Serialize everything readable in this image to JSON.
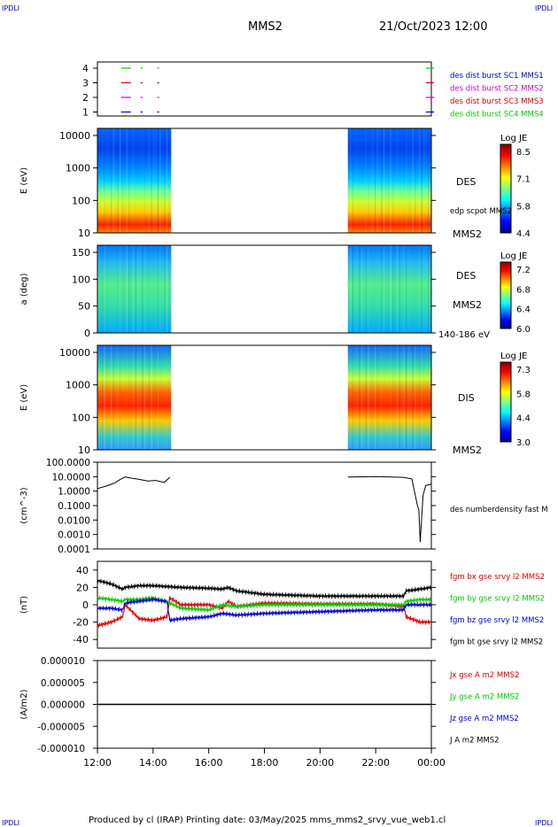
{
  "corner_marks": {
    "top_left": "IPDLI",
    "top_right": "IPDLI",
    "bottom_left": "IPDLI",
    "bottom_right": "IPDLI"
  },
  "header": {
    "mission": "MMS2",
    "datetime": "21/Oct/2023 12:00"
  },
  "footer": {
    "text": "Produced by cl (IRAP)   Printing date: 03/May/2025   mms_mms2_srvy_vue_web1.cl"
  },
  "colors": {
    "mms1": "#0000cc",
    "mms2": "#cc00cc",
    "mms3": "#dd0000",
    "mms4": "#00cc00",
    "black": "#000000"
  },
  "chart_data": [
    {
      "id": "burst",
      "type": "scatter",
      "yticks": [
        "4",
        "3",
        "2",
        "1"
      ],
      "legend": [
        {
          "text": "des dist burst SC1 MMS1",
          "color": "#0000cc"
        },
        {
          "text": "des dist burst SC2 MMS2",
          "color": "#cc00cc"
        },
        {
          "text": "des dist burst SC3 MMS3",
          "color": "#dd0000"
        },
        {
          "text": "des dist burst SC4 MMS4",
          "color": "#00cc00"
        }
      ],
      "intervals_hours": [
        [
          12.85,
          13.2
        ],
        [
          13.55,
          13.62
        ],
        [
          14.15,
          14.22
        ],
        [
          23.8,
          24.1
        ]
      ]
    },
    {
      "id": "des-energy",
      "type": "heatmap",
      "ylabel": "E (eV)",
      "yticks": [
        "10000",
        "1000",
        "100",
        "10"
      ],
      "right_labels": [
        "DES",
        "edp scpot MMS2",
        "MMS2"
      ],
      "colorbar": {
        "title": "Log JE",
        "ticks": [
          "8.5",
          "7.1",
          "5.8",
          "4.4"
        ],
        "range": [
          4.4,
          8.5
        ]
      },
      "data_intervals_hours": [
        [
          12,
          14.65
        ],
        [
          21,
          24
        ]
      ]
    },
    {
      "id": "des-pitch",
      "type": "heatmap",
      "ylabel": "a (deg)",
      "yticks": [
        "150",
        "100",
        "50",
        "0"
      ],
      "right_labels": [
        "DES",
        "MMS2",
        "140-186 eV"
      ],
      "colorbar": {
        "title": "Log JE",
        "ticks": [
          "7.2",
          "6.8",
          "6.4",
          "6.0"
        ],
        "range": [
          6.0,
          7.2
        ]
      },
      "data_intervals_hours": [
        [
          12,
          14.65
        ],
        [
          21,
          24
        ]
      ]
    },
    {
      "id": "dis-energy",
      "type": "heatmap",
      "ylabel": "E (eV)",
      "yticks": [
        "10000",
        "1000",
        "100",
        "10"
      ],
      "right_labels": [
        "DIS",
        "MMS2"
      ],
      "colorbar": {
        "title": "Log JE",
        "ticks": [
          "7.3",
          "5.8",
          "4.4",
          "3.0"
        ],
        "range": [
          3.0,
          7.3
        ]
      },
      "data_intervals_hours": [
        [
          12,
          14.65
        ],
        [
          21,
          24
        ]
      ]
    },
    {
      "id": "density",
      "type": "line",
      "ylabel": "(cm^-3)",
      "yticks": [
        "100.0000",
        "10.0000",
        "1.0000",
        "0.1000",
        "0.0100",
        "0.0010",
        "0.0001"
      ],
      "ylim": [
        0.0001,
        100
      ],
      "legend": [
        {
          "text": "des numberdensity fast M",
          "color": "#000000"
        }
      ],
      "series": [
        {
          "x": [
            12.0,
            12.3,
            12.6,
            12.85,
            13.0,
            13.2,
            13.5,
            13.8,
            14.1,
            14.4,
            14.6,
            21.0,
            22.0,
            23.0,
            23.3,
            23.5,
            23.55,
            23.6,
            23.7,
            23.8,
            24.0
          ],
          "y": [
            1.5,
            2.2,
            3.5,
            7.0,
            9.5,
            8.0,
            6.5,
            5.0,
            5.5,
            4.0,
            9.0,
            9.5,
            10.0,
            9.0,
            7.0,
            0.1,
            0.05,
            0.0003,
            0.5,
            2.5,
            3.0
          ]
        }
      ]
    },
    {
      "id": "fgm",
      "type": "line",
      "ylabel": "(nT)",
      "yticks": [
        "40",
        "20",
        "0",
        "-20",
        "-40"
      ],
      "ylim": [
        -50,
        50
      ],
      "legend": [
        {
          "text": "fgm bx gse srvy l2 MMS2",
          "color": "#dd0000"
        },
        {
          "text": "fgm by gse srvy l2 MMS2",
          "color": "#00cc00"
        },
        {
          "text": "fgm bz gse srvy l2 MMS2",
          "color": "#0000cc"
        },
        {
          "text": "fgm bt gse srvy l2 MMS2",
          "color": "#000000"
        }
      ],
      "series": [
        {
          "name": "bx",
          "color": "#dd0000",
          "x": [
            12.0,
            12.5,
            12.9,
            13.0,
            13.5,
            14.0,
            14.5,
            14.6,
            15.0,
            16.0,
            16.5,
            16.7,
            17.0,
            18.0,
            20.0,
            22.0,
            23.0,
            23.1,
            23.6,
            24.0
          ],
          "y": [
            -24,
            -20,
            -14,
            0,
            -16,
            -18,
            -14,
            8,
            0,
            0,
            -4,
            4,
            -2,
            2,
            1,
            1,
            -2,
            -14,
            -20,
            -20
          ]
        },
        {
          "name": "by",
          "color": "#00cc00",
          "x": [
            12.0,
            12.5,
            12.9,
            13.0,
            13.5,
            14.0,
            14.6,
            15.0,
            16.0,
            16.5,
            17.0,
            18.0,
            20.0,
            22.0,
            23.0,
            23.1,
            23.6,
            24.0
          ],
          "y": [
            8,
            6,
            4,
            6,
            6,
            8,
            2,
            -4,
            -6,
            0,
            -2,
            0,
            0,
            0,
            0,
            4,
            6,
            6
          ]
        },
        {
          "name": "bz",
          "color": "#0000cc",
          "x": [
            12.0,
            12.5,
            12.9,
            13.0,
            13.5,
            14.0,
            14.5,
            14.6,
            15.0,
            16.0,
            16.5,
            17.0,
            18.0,
            20.0,
            22.0,
            23.0,
            23.1,
            23.6,
            24.0
          ],
          "y": [
            -4,
            -4,
            -6,
            2,
            4,
            6,
            4,
            -18,
            -16,
            -14,
            -10,
            -12,
            -10,
            -8,
            -6,
            -6,
            0,
            0,
            0
          ]
        },
        {
          "name": "bt",
          "color": "#000000",
          "x": [
            12.0,
            12.5,
            12.9,
            13.0,
            13.5,
            14.0,
            14.5,
            15.0,
            16.0,
            16.5,
            16.7,
            17.0,
            18.0,
            20.0,
            22.0,
            23.0,
            23.1,
            23.6,
            24.0
          ],
          "y": [
            28,
            24,
            18,
            20,
            22,
            22,
            21,
            20,
            19,
            18,
            20,
            16,
            12,
            10,
            10,
            10,
            16,
            18,
            20
          ]
        }
      ]
    },
    {
      "id": "current",
      "type": "line",
      "ylabel": "(A/m2)",
      "yticks": [
        "0.000010",
        "0.000005",
        "0.000000",
        "-0.000005",
        "-0.000010"
      ],
      "ylim": [
        -1e-05,
        1e-05
      ],
      "legend": [
        {
          "text": "Jx gse A m2 MMS2",
          "color": "#dd0000"
        },
        {
          "text": "Jy gse A m2 MMS2",
          "color": "#00cc00"
        },
        {
          "text": "Jz gse A m2 MMS2",
          "color": "#0000cc"
        },
        {
          "text": "J A m2 MMS2",
          "color": "#000000"
        }
      ],
      "series": [
        {
          "name": "J",
          "color": "#000000",
          "x": [
            12,
            24
          ],
          "y": [
            0,
            0
          ]
        }
      ]
    }
  ],
  "xaxis": {
    "ticks": [
      "12:00",
      "14:00",
      "16:00",
      "18:00",
      "20:00",
      "22:00",
      "00:00"
    ],
    "range_hours": [
      12,
      24
    ]
  }
}
